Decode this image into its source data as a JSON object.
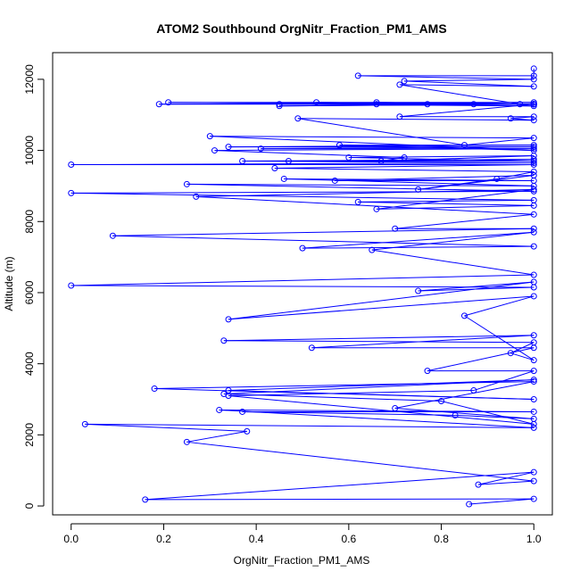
{
  "chart_data": {
    "type": "line",
    "title": "ATOM2 Southbound OrgNitr_Fraction_PM1_AMS",
    "xlabel": "OrgNitr_Fraction_PM1_AMS",
    "ylabel": "Altitude (m)",
    "xlim": [
      -0.04,
      1.04
    ],
    "ylim": [
      -250,
      12750
    ],
    "xticks": [
      0.0,
      0.2,
      0.4,
      0.6,
      0.8,
      1.0
    ],
    "xtick_labels": [
      "0.0",
      "0.2",
      "0.4",
      "0.6",
      "0.8",
      "1.0"
    ],
    "yticks": [
      0,
      2000,
      4000,
      6000,
      8000,
      10000,
      12000
    ],
    "ytick_labels": [
      "0",
      "2000",
      "4000",
      "6000",
      "8000",
      "10000",
      "12000"
    ],
    "grid": false,
    "marker": "open-circle",
    "line": true,
    "series": [
      {
        "name": "Southbound",
        "color": "#0000ff",
        "points": [
          [
            0.86,
            50
          ],
          [
            1.0,
            200
          ],
          [
            0.16,
            180
          ],
          [
            1.0,
            950
          ],
          [
            0.88,
            600
          ],
          [
            1.0,
            700
          ],
          [
            0.25,
            1800
          ],
          [
            0.38,
            2100
          ],
          [
            0.03,
            2300
          ],
          [
            1.0,
            2200
          ],
          [
            0.32,
            2700
          ],
          [
            1.0,
            2650
          ],
          [
            0.37,
            2650
          ],
          [
            0.83,
            2550
          ],
          [
            1.0,
            2450
          ],
          [
            0.7,
            2750
          ],
          [
            1.0,
            3500
          ],
          [
            0.18,
            3300
          ],
          [
            1.0,
            3000
          ],
          [
            0.34,
            3250
          ],
          [
            1.0,
            3550
          ],
          [
            0.33,
            3150
          ],
          [
            0.8,
            2950
          ],
          [
            1.0,
            2300
          ],
          [
            0.34,
            3100
          ],
          [
            0.87,
            3250
          ],
          [
            1.0,
            3800
          ],
          [
            0.77,
            3800
          ],
          [
            1.0,
            4450
          ],
          [
            0.52,
            4450
          ],
          [
            1.0,
            4800
          ],
          [
            0.33,
            4650
          ],
          [
            1.0,
            4600
          ],
          [
            0.95,
            4300
          ],
          [
            1.0,
            4100
          ],
          [
            0.85,
            5350
          ],
          [
            1.0,
            5900
          ],
          [
            0.34,
            5250
          ],
          [
            1.0,
            6300
          ],
          [
            0.75,
            6050
          ],
          [
            1.0,
            6150
          ],
          [
            0.0,
            6200
          ],
          [
            1.0,
            6500
          ],
          [
            0.65,
            7200
          ],
          [
            1.0,
            7700
          ],
          [
            0.5,
            7250
          ],
          [
            1.0,
            7300
          ],
          [
            0.09,
            7600
          ],
          [
            1.0,
            7800
          ],
          [
            0.7,
            7800
          ],
          [
            1.0,
            8200
          ],
          [
            0.27,
            8700
          ],
          [
            1.0,
            8900
          ],
          [
            0.66,
            8350
          ],
          [
            1.0,
            8450
          ],
          [
            0.62,
            8550
          ],
          [
            1.0,
            8600
          ],
          [
            0.0,
            8800
          ],
          [
            1.0,
            8850
          ],
          [
            0.25,
            9050
          ],
          [
            1.0,
            9000
          ],
          [
            0.46,
            9200
          ],
          [
            1.0,
            9150
          ],
          [
            0.57,
            9150
          ],
          [
            1.0,
            9300
          ],
          [
            0.75,
            8900
          ],
          [
            0.92,
            9200
          ],
          [
            1.0,
            9400
          ],
          [
            0.44,
            9500
          ],
          [
            1.0,
            9600
          ],
          [
            0.0,
            9600
          ],
          [
            1.0,
            9650
          ],
          [
            0.37,
            9700
          ],
          [
            1.0,
            9750
          ],
          [
            0.47,
            9700
          ],
          [
            1.0,
            9700
          ],
          [
            0.6,
            9800
          ],
          [
            1.0,
            9850
          ],
          [
            0.67,
            9700
          ],
          [
            0.72,
            9800
          ],
          [
            0.31,
            10000
          ],
          [
            1.0,
            10050
          ],
          [
            0.41,
            10050
          ],
          [
            1.0,
            10100
          ],
          [
            0.34,
            10100
          ],
          [
            1.0,
            10150
          ],
          [
            0.58,
            10150
          ],
          [
            1.0,
            10000
          ],
          [
            0.3,
            10400
          ],
          [
            1.0,
            10350
          ],
          [
            0.85,
            10150
          ],
          [
            0.49,
            10900
          ],
          [
            1.0,
            10850
          ],
          [
            0.95,
            10900
          ],
          [
            1.0,
            10950
          ],
          [
            0.71,
            10950
          ],
          [
            1.0,
            11300
          ],
          [
            0.19,
            11300
          ],
          [
            1.0,
            11350
          ],
          [
            0.21,
            11350
          ],
          [
            1.0,
            11300
          ],
          [
            0.45,
            11250
          ],
          [
            1.0,
            11300
          ],
          [
            0.53,
            11350
          ],
          [
            1.0,
            11300
          ],
          [
            0.45,
            11300
          ],
          [
            1.0,
            11250
          ],
          [
            0.66,
            11300
          ],
          [
            1.0,
            11300
          ],
          [
            0.66,
            11350
          ],
          [
            1.0,
            11300
          ],
          [
            0.87,
            11300
          ],
          [
            1.0,
            11300
          ],
          [
            0.77,
            11300
          ],
          [
            0.97,
            11300
          ],
          [
            0.71,
            11850
          ],
          [
            1.0,
            11800
          ],
          [
            0.72,
            11950
          ],
          [
            1.0,
            12000
          ],
          [
            0.62,
            12100
          ],
          [
            1.0,
            12100
          ],
          [
            1.0,
            12300
          ]
        ]
      }
    ]
  }
}
